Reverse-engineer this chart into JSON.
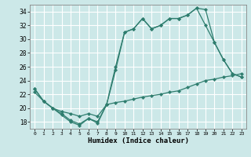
{
  "xlabel": "Humidex (Indice chaleur)",
  "line_color": "#2e7d6e",
  "background_color": "#cce8e8",
  "grid_color": "#ffffff",
  "xlim": [
    -0.5,
    23.5
  ],
  "ylim": [
    17.0,
    35.0
  ],
  "yticks": [
    18,
    20,
    22,
    24,
    26,
    28,
    30,
    32,
    34
  ],
  "xticks": [
    0,
    1,
    2,
    3,
    4,
    5,
    6,
    7,
    8,
    9,
    10,
    11,
    12,
    13,
    14,
    15,
    16,
    17,
    18,
    19,
    20,
    21,
    22,
    23
  ],
  "series1_x": [
    0,
    1,
    2,
    3,
    4,
    5,
    6,
    7,
    8,
    9,
    10,
    11,
    12,
    13,
    14,
    15,
    16,
    17,
    18,
    19,
    20,
    21,
    22,
    23
  ],
  "series1_y": [
    22.8,
    21.0,
    20.0,
    19.0,
    18.0,
    17.5,
    18.5,
    17.8,
    20.5,
    25.5,
    31.0,
    31.5,
    33.0,
    31.5,
    32.0,
    33.0,
    33.0,
    33.5,
    34.5,
    32.0,
    29.5,
    27.0,
    25.0,
    24.5
  ],
  "series2_x": [
    0,
    1,
    2,
    3,
    4,
    5,
    6,
    7,
    8,
    9,
    10,
    11,
    12,
    13,
    14,
    15,
    16,
    17,
    18,
    19,
    20,
    21,
    22,
    23
  ],
  "series2_y": [
    22.8,
    21.0,
    20.0,
    19.2,
    18.2,
    17.7,
    18.5,
    18.0,
    20.5,
    26.0,
    31.0,
    31.5,
    33.0,
    31.5,
    32.0,
    33.0,
    33.0,
    33.5,
    34.5,
    34.3,
    29.5,
    27.0,
    25.0,
    24.5
  ],
  "series3_x": [
    0,
    1,
    2,
    3,
    4,
    5,
    6,
    7,
    8,
    9,
    10,
    11,
    12,
    13,
    14,
    15,
    16,
    17,
    18,
    19,
    20,
    21,
    22,
    23
  ],
  "series3_y": [
    22.3,
    21.0,
    20.0,
    19.5,
    19.2,
    18.8,
    19.2,
    18.8,
    20.5,
    20.8,
    21.0,
    21.3,
    21.6,
    21.8,
    22.0,
    22.3,
    22.5,
    23.0,
    23.5,
    24.0,
    24.2,
    24.5,
    24.7,
    25.0
  ]
}
